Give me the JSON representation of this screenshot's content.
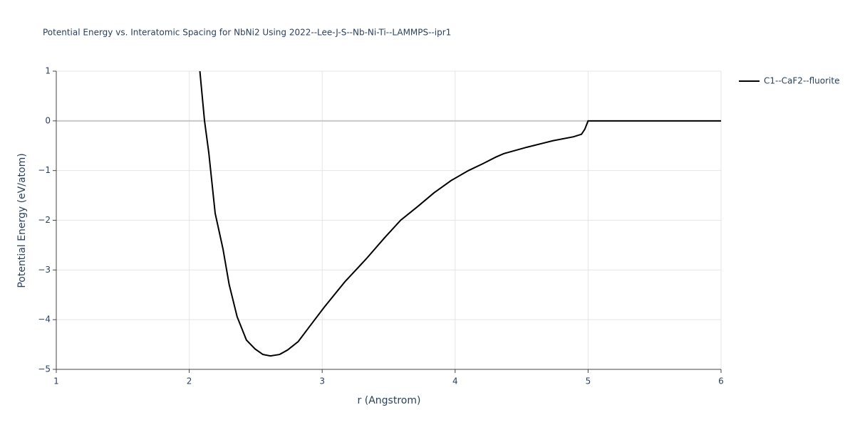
{
  "chart_data": {
    "type": "line",
    "title": "Potential Energy vs. Interatomic Spacing for NbNi2 Using 2022--Lee-J-S--Nb-Ni-Ti--LAMMPS--ipr1",
    "x_label": "r (Angstrom)",
    "y_label": "Potential Energy (eV/atom)",
    "xlim": [
      1,
      6
    ],
    "ylim": [
      -5,
      1
    ],
    "xticks": [
      1,
      2,
      3,
      4,
      5,
      6
    ],
    "yticks": [
      1,
      0,
      {
        "value": -1,
        "label": "−1"
      },
      {
        "value": -2,
        "label": "−2"
      },
      {
        "value": -3,
        "label": "−3"
      },
      {
        "value": -4,
        "label": "−4"
      },
      {
        "value": -5,
        "label": "−5"
      }
    ],
    "grid": true,
    "legend": "top-right",
    "series": [
      {
        "name": "C1--CaF2--fluorite",
        "color": "#000000",
        "x": [
          2.08,
          2.115,
          2.147,
          2.195,
          2.254,
          2.3,
          2.36,
          2.43,
          2.495,
          2.554,
          2.61,
          2.68,
          2.74,
          2.82,
          2.91,
          3.015,
          3.17,
          3.33,
          3.47,
          3.59,
          3.72,
          3.84,
          3.97,
          4.1,
          4.21,
          4.305,
          4.365,
          4.54,
          4.735,
          4.89,
          4.95,
          4.975,
          5.0,
          6.0
        ],
        "values": [
          1.0,
          0.0,
          -0.64,
          -1.86,
          -2.58,
          -3.29,
          -3.94,
          -4.41,
          -4.59,
          -4.7,
          -4.73,
          -4.7,
          -4.61,
          -4.44,
          -4.12,
          -3.75,
          -3.24,
          -2.78,
          -2.35,
          -2.0,
          -1.72,
          -1.45,
          -1.2,
          -1.0,
          -0.86,
          -0.73,
          -0.66,
          -0.53,
          -0.4,
          -0.32,
          -0.27,
          -0.17,
          0.0,
          0.0
        ]
      }
    ]
  }
}
